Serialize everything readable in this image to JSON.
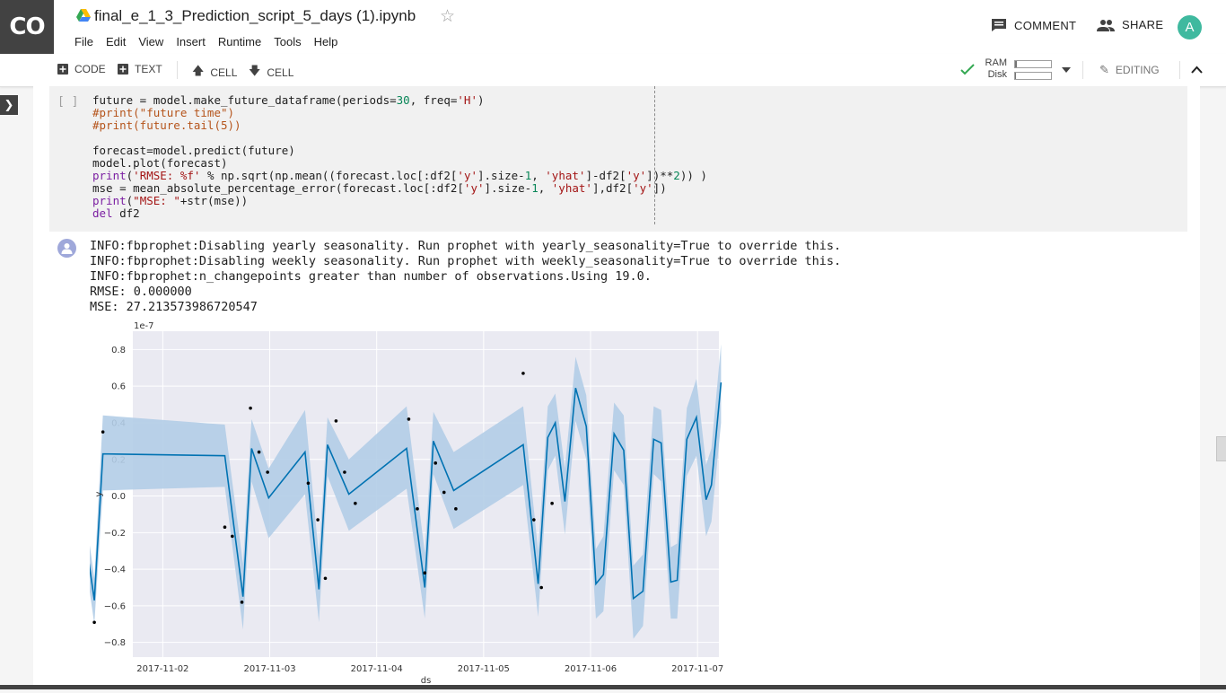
{
  "app": {
    "logo": "CO",
    "notebook_title": "final_e_1_3_Prediction_script_5_days (1).ipynb"
  },
  "menu": [
    "File",
    "Edit",
    "View",
    "Insert",
    "Runtime",
    "Tools",
    "Help"
  ],
  "header_actions": {
    "comment": "COMMENT",
    "share": "SHARE",
    "avatar_letter": "A"
  },
  "toolbar": {
    "code": "CODE",
    "text": "TEXT",
    "cell_up": "CELL",
    "cell_down": "CELL",
    "ram_label": "RAM",
    "disk_label": "Disk",
    "ram_usage": 0.05,
    "disk_usage": 0.03,
    "editing": "EDITING"
  },
  "cell": {
    "run_indicator": "[ ]",
    "code_lines": [
      "future = model.make_future_dataframe(periods=30, freq='H')",
      "#print(\"future time\")",
      "#print(future.tail(5))",
      "",
      "forecast=model.predict(future)",
      "model.plot(forecast)",
      "print('RMSE: %f' % np.sqrt(np.mean((forecast.loc[:df2['y'].size-1, 'yhat']-df2['y'])**2)) )",
      "mse = mean_absolute_percentage_error(forecast.loc[:df2['y'].size-1, 'yhat'],df2['y'])",
      "print(\"MSE: \"+str(mse))",
      "del df2"
    ],
    "output_lines": [
      "INFO:fbprophet:Disabling yearly seasonality. Run prophet with yearly_seasonality=True to override this.",
      "INFO:fbprophet:Disabling weekly seasonality. Run prophet with weekly_seasonality=True to override this.",
      "INFO:fbprophet:n_changepoints greater than number of observations.Using 19.0.",
      "RMSE: 0.000000",
      "MSE: 27.213573986720547"
    ]
  },
  "chart_data": {
    "type": "line",
    "title": "",
    "xlabel": "ds",
    "ylabel": "y",
    "y_scale_label": "1e-7",
    "xlim": [
      0.72,
      6.2
    ],
    "ylim": [
      -0.88,
      0.9
    ],
    "x_ticks": [
      {
        "x": 1,
        "label": "2017-11-02"
      },
      {
        "x": 2,
        "label": "2017-11-03"
      },
      {
        "x": 3,
        "label": "2017-11-04"
      },
      {
        "x": 4,
        "label": "2017-11-05"
      },
      {
        "x": 5,
        "label": "2017-11-06"
      },
      {
        "x": 6,
        "label": "2017-11-07"
      }
    ],
    "y_ticks": [
      {
        "y": 0.8,
        "label": "0.8"
      },
      {
        "y": 0.6,
        "label": "0.6"
      },
      {
        "y": 0.4,
        "label": "0.4"
      },
      {
        "y": 0.2,
        "label": "0.2"
      },
      {
        "y": 0.0,
        "label": "0.0"
      },
      {
        "y": -0.2,
        "label": "−0.2"
      },
      {
        "y": -0.4,
        "label": "−0.4"
      },
      {
        "y": -0.6,
        "label": "−0.6"
      },
      {
        "y": -0.8,
        "label": "−0.8"
      }
    ],
    "grid": true,
    "colors": {
      "forecast": "#0072b2",
      "interval": "#b3cde7",
      "points": "#000000",
      "background": "#eaeaf2",
      "grid": "#ffffff"
    },
    "forecast": [
      [
        0.27,
        -0.2
      ],
      [
        0.36,
        -0.57
      ],
      [
        0.44,
        0.23
      ],
      [
        1.58,
        0.22
      ],
      [
        1.75,
        -0.55
      ],
      [
        1.83,
        0.26
      ],
      [
        1.99,
        -0.01
      ],
      [
        2.33,
        0.24
      ],
      [
        2.46,
        -0.51
      ],
      [
        2.54,
        0.28
      ],
      [
        2.74,
        0.01
      ],
      [
        3.28,
        0.26
      ],
      [
        3.45,
        -0.5
      ],
      [
        3.53,
        0.3
      ],
      [
        3.72,
        0.03
      ],
      [
        4.37,
        0.28
      ],
      [
        4.51,
        -0.48
      ],
      [
        4.6,
        0.32
      ],
      [
        4.67,
        0.4
      ],
      [
        4.76,
        -0.03
      ],
      [
        4.86,
        0.59
      ],
      [
        4.96,
        0.38
      ],
      [
        5.05,
        -0.48
      ],
      [
        5.12,
        -0.43
      ],
      [
        5.22,
        0.34
      ],
      [
        5.31,
        0.25
      ],
      [
        5.4,
        -0.56
      ],
      [
        5.49,
        -0.52
      ],
      [
        5.59,
        0.31
      ],
      [
        5.66,
        0.29
      ],
      [
        5.75,
        -0.47
      ],
      [
        5.81,
        -0.46
      ],
      [
        5.9,
        0.31
      ],
      [
        5.99,
        0.43
      ],
      [
        6.08,
        -0.02
      ],
      [
        6.13,
        0.06
      ],
      [
        6.22,
        0.62
      ]
    ],
    "interval": [
      [
        0.27,
        -0.07,
        -0.33
      ],
      [
        0.36,
        -0.45,
        -0.7
      ],
      [
        0.44,
        0.44,
        0.03
      ],
      [
        1.58,
        0.39,
        0.05
      ],
      [
        1.75,
        -0.37,
        -0.73
      ],
      [
        1.83,
        0.42,
        0.08
      ],
      [
        1.99,
        0.15,
        -0.23
      ],
      [
        2.33,
        0.47,
        0.01
      ],
      [
        2.46,
        -0.33,
        -0.69
      ],
      [
        2.54,
        0.43,
        0.11
      ],
      [
        2.74,
        0.2,
        -0.19
      ],
      [
        3.28,
        0.49,
        0.04
      ],
      [
        3.45,
        -0.31,
        -0.67
      ],
      [
        3.53,
        0.46,
        0.12
      ],
      [
        3.72,
        0.24,
        -0.18
      ],
      [
        4.37,
        0.49,
        0.06
      ],
      [
        4.51,
        -0.3,
        -0.66
      ],
      [
        4.6,
        0.49,
        0.14
      ],
      [
        4.67,
        0.56,
        0.22
      ],
      [
        4.76,
        0.15,
        -0.21
      ],
      [
        4.86,
        0.76,
        0.41
      ],
      [
        4.96,
        0.55,
        0.2
      ],
      [
        5.05,
        -0.29,
        -0.67
      ],
      [
        5.12,
        -0.22,
        -0.63
      ],
      [
        5.22,
        0.51,
        0.14
      ],
      [
        5.31,
        0.44,
        0.06
      ],
      [
        5.4,
        -0.38,
        -0.78
      ],
      [
        5.49,
        -0.32,
        -0.71
      ],
      [
        5.59,
        0.49,
        0.12
      ],
      [
        5.66,
        0.47,
        0.08
      ],
      [
        5.75,
        -0.28,
        -0.67
      ],
      [
        5.81,
        -0.26,
        -0.67
      ],
      [
        5.9,
        0.48,
        0.11
      ],
      [
        5.99,
        0.64,
        0.22
      ],
      [
        6.08,
        0.17,
        -0.22
      ],
      [
        6.13,
        0.26,
        -0.14
      ],
      [
        6.22,
        0.83,
        0.4
      ]
    ],
    "points": [
      [
        0.27,
        -0.24
      ],
      [
        0.36,
        -0.69
      ],
      [
        0.44,
        0.35
      ],
      [
        1.58,
        -0.17
      ],
      [
        1.65,
        -0.22
      ],
      [
        1.74,
        -0.58
      ],
      [
        1.82,
        0.48
      ],
      [
        1.9,
        0.24
      ],
      [
        1.98,
        0.13
      ],
      [
        2.36,
        0.07
      ],
      [
        2.45,
        -0.13
      ],
      [
        2.52,
        -0.45
      ],
      [
        2.62,
        0.41
      ],
      [
        2.7,
        0.13
      ],
      [
        2.8,
        -0.04
      ],
      [
        3.3,
        0.42
      ],
      [
        3.38,
        -0.07
      ],
      [
        3.45,
        -0.42
      ],
      [
        3.55,
        0.18
      ],
      [
        3.63,
        0.02
      ],
      [
        3.74,
        -0.07
      ],
      [
        4.37,
        0.67
      ],
      [
        4.47,
        -0.13
      ],
      [
        4.54,
        -0.5
      ],
      [
        4.64,
        -0.04
      ]
    ]
  }
}
